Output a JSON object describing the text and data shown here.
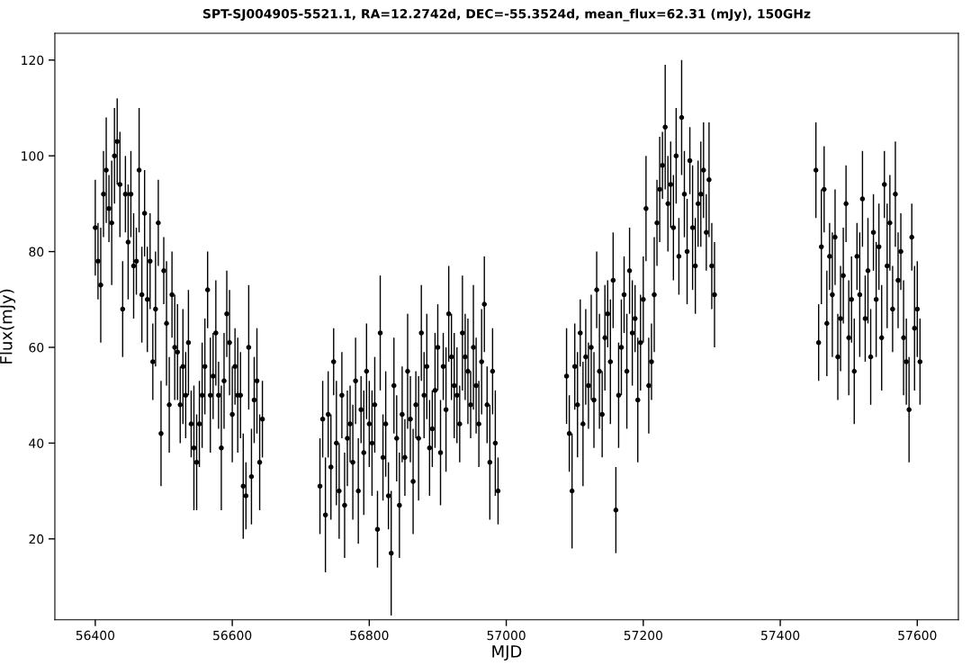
{
  "chart_data": {
    "type": "scatter",
    "title": "SPT-SJ004905-5521.1, RA=12.2742d, DEC=-55.3524d, mean_flux=62.31 (mJy), 150GHz",
    "xlabel": "MJD",
    "ylabel": "Flux(mJy)",
    "xlim": [
      56341,
      57660
    ],
    "ylim": [
      3.1,
      125.6
    ],
    "xticks": [
      56400,
      56600,
      56800,
      57000,
      57200,
      57400,
      57600
    ],
    "yticks": [
      20,
      40,
      60,
      80,
      100,
      120
    ],
    "grid": false,
    "marker": "circle",
    "x": [
      56400,
      56404,
      56408,
      56412,
      56416,
      56420,
      56424,
      56428,
      56432,
      56436,
      56440,
      56444,
      56448,
      56452,
      56456,
      56460,
      56464,
      56468,
      56472,
      56476,
      56480,
      56484,
      56488,
      56492,
      56496,
      56500,
      56504,
      56508,
      56512,
      56516,
      56520,
      56524,
      56528,
      56532,
      56536,
      56540,
      56544,
      56548,
      56552,
      56556,
      56560,
      56564,
      56568,
      56572,
      56576,
      56580,
      56584,
      56588,
      56592,
      56596,
      56600,
      56604,
      56608,
      56612,
      56616,
      56620,
      56624,
      56628,
      56632,
      56636,
      56640,
      56644,
      56728,
      56732,
      56736,
      56740,
      56744,
      56748,
      56752,
      56756,
      56760,
      56764,
      56768,
      56772,
      56776,
      56780,
      56784,
      56788,
      56792,
      56796,
      56800,
      56804,
      56808,
      56812,
      56816,
      56820,
      56824,
      56828,
      56832,
      56836,
      56840,
      56844,
      56848,
      56852,
      56856,
      56860,
      56864,
      56868,
      56872,
      56876,
      56880,
      56884,
      56888,
      56892,
      56896,
      56900,
      56904,
      56908,
      56912,
      56916,
      56920,
      56924,
      56928,
      56932,
      56936,
      56940,
      56944,
      56948,
      56952,
      56956,
      56960,
      56964,
      56968,
      56972,
      56976,
      56980,
      56984,
      56988,
      57088,
      57092,
      57096,
      57100,
      57104,
      57108,
      57112,
      57116,
      57120,
      57124,
      57128,
      57132,
      57136,
      57140,
      57144,
      57148,
      57152,
      57156,
      57160,
      57164,
      57168,
      57172,
      57176,
      57180,
      57184,
      57188,
      57192,
      57196,
      57200,
      57204,
      57208,
      57212,
      57216,
      57220,
      57224,
      57228,
      57232,
      57236,
      57240,
      57244,
      57248,
      57252,
      57256,
      57260,
      57264,
      57268,
      57272,
      57276,
      57280,
      57284,
      57288,
      57292,
      57296,
      57300,
      57304,
      57452,
      57456,
      57460,
      57464,
      57468,
      57472,
      57476,
      57480,
      57484,
      57488,
      57492,
      57496,
      57500,
      57504,
      57508,
      57512,
      57516,
      57520,
      57524,
      57528,
      57532,
      57536,
      57540,
      57544,
      57548,
      57552,
      57556,
      57560,
      57564,
      57568,
      57572,
      57576,
      57580,
      57584,
      57588,
      57592,
      57596,
      57600,
      57604
    ],
    "series": [
      {
        "color": "#000000",
        "values": [
          85,
          78,
          73,
          92,
          97,
          89,
          86,
          100,
          103,
          94,
          68,
          92,
          82,
          92,
          77,
          78,
          97,
          71,
          88,
          70,
          78,
          57,
          68,
          86,
          42,
          76,
          65,
          48,
          71,
          60,
          59,
          48,
          56,
          50,
          61,
          44,
          39,
          36,
          44,
          50,
          56,
          72,
          50,
          54,
          63,
          50,
          39,
          53,
          67,
          61,
          46,
          56,
          50,
          50,
          31,
          29,
          60,
          33,
          49,
          53,
          36,
          45,
          31,
          45,
          25,
          46,
          35,
          57,
          40,
          30,
          50,
          27,
          41,
          44,
          36,
          53,
          30,
          47,
          38,
          55,
          44,
          40,
          48,
          22,
          63,
          37,
          44,
          29,
          17,
          52,
          41,
          27,
          46,
          37,
          55,
          45,
          32,
          48,
          41,
          63,
          50,
          56,
          39,
          43,
          51,
          60,
          38,
          56,
          47,
          67,
          58,
          52,
          50,
          44,
          63,
          58,
          55,
          48,
          60,
          52,
          44,
          57,
          69,
          48,
          36,
          55,
          40,
          30,
          54,
          42,
          30,
          56,
          48,
          63,
          44,
          58,
          52,
          60,
          49,
          72,
          55,
          46,
          62,
          67,
          57,
          74,
          26,
          50,
          60,
          71,
          55,
          76,
          63,
          66,
          49,
          61,
          70,
          89,
          52,
          57,
          71,
          86,
          93,
          98,
          106,
          90,
          94,
          85,
          100,
          79,
          108,
          92,
          80,
          99,
          85,
          77,
          90,
          92,
          97,
          84,
          95,
          77,
          71,
          97,
          61,
          81,
          93,
          65,
          79,
          71,
          83,
          58,
          66,
          75,
          90,
          62,
          70,
          55,
          79,
          71,
          91,
          66,
          76,
          58,
          84,
          70,
          81,
          62,
          94,
          77,
          86,
          68,
          92,
          74,
          80,
          62,
          57,
          47,
          83,
          64,
          68,
          57
        ],
        "errors": [
          10,
          8,
          12,
          9,
          11,
          7,
          13,
          10,
          9,
          11,
          10,
          8,
          12,
          9,
          11,
          7,
          13,
          10,
          9,
          11,
          10,
          8,
          12,
          9,
          11,
          7,
          13,
          10,
          9,
          11,
          10,
          8,
          12,
          9,
          11,
          7,
          13,
          10,
          9,
          11,
          10,
          8,
          12,
          9,
          11,
          7,
          13,
          10,
          9,
          11,
          10,
          8,
          12,
          9,
          11,
          7,
          13,
          10,
          9,
          11,
          10,
          8,
          10,
          8,
          12,
          9,
          11,
          7,
          13,
          10,
          9,
          11,
          10,
          8,
          12,
          9,
          11,
          7,
          13,
          10,
          9,
          11,
          10,
          8,
          12,
          9,
          11,
          7,
          13,
          10,
          9,
          11,
          10,
          8,
          12,
          9,
          11,
          7,
          13,
          10,
          9,
          11,
          10,
          8,
          12,
          9,
          11,
          7,
          13,
          10,
          9,
          11,
          10,
          8,
          12,
          9,
          11,
          7,
          13,
          10,
          9,
          11,
          10,
          8,
          12,
          9,
          11,
          7,
          10,
          8,
          12,
          9,
          11,
          7,
          13,
          10,
          9,
          11,
          10,
          8,
          12,
          9,
          11,
          7,
          13,
          10,
          9,
          11,
          10,
          8,
          12,
          9,
          11,
          7,
          13,
          10,
          9,
          11,
          10,
          8,
          12,
          9,
          11,
          7,
          13,
          10,
          9,
          11,
          10,
          8,
          12,
          9,
          11,
          7,
          13,
          10,
          9,
          11,
          10,
          8,
          12,
          9,
          11,
          10,
          8,
          12,
          9,
          11,
          7,
          13,
          10,
          9,
          11,
          10,
          8,
          12,
          9,
          11,
          7,
          13,
          10,
          9,
          11,
          10,
          8,
          12,
          9,
          11,
          7,
          13,
          10,
          9,
          11,
          10,
          8,
          12,
          9,
          11,
          7,
          13,
          10,
          9
        ]
      }
    ]
  }
}
